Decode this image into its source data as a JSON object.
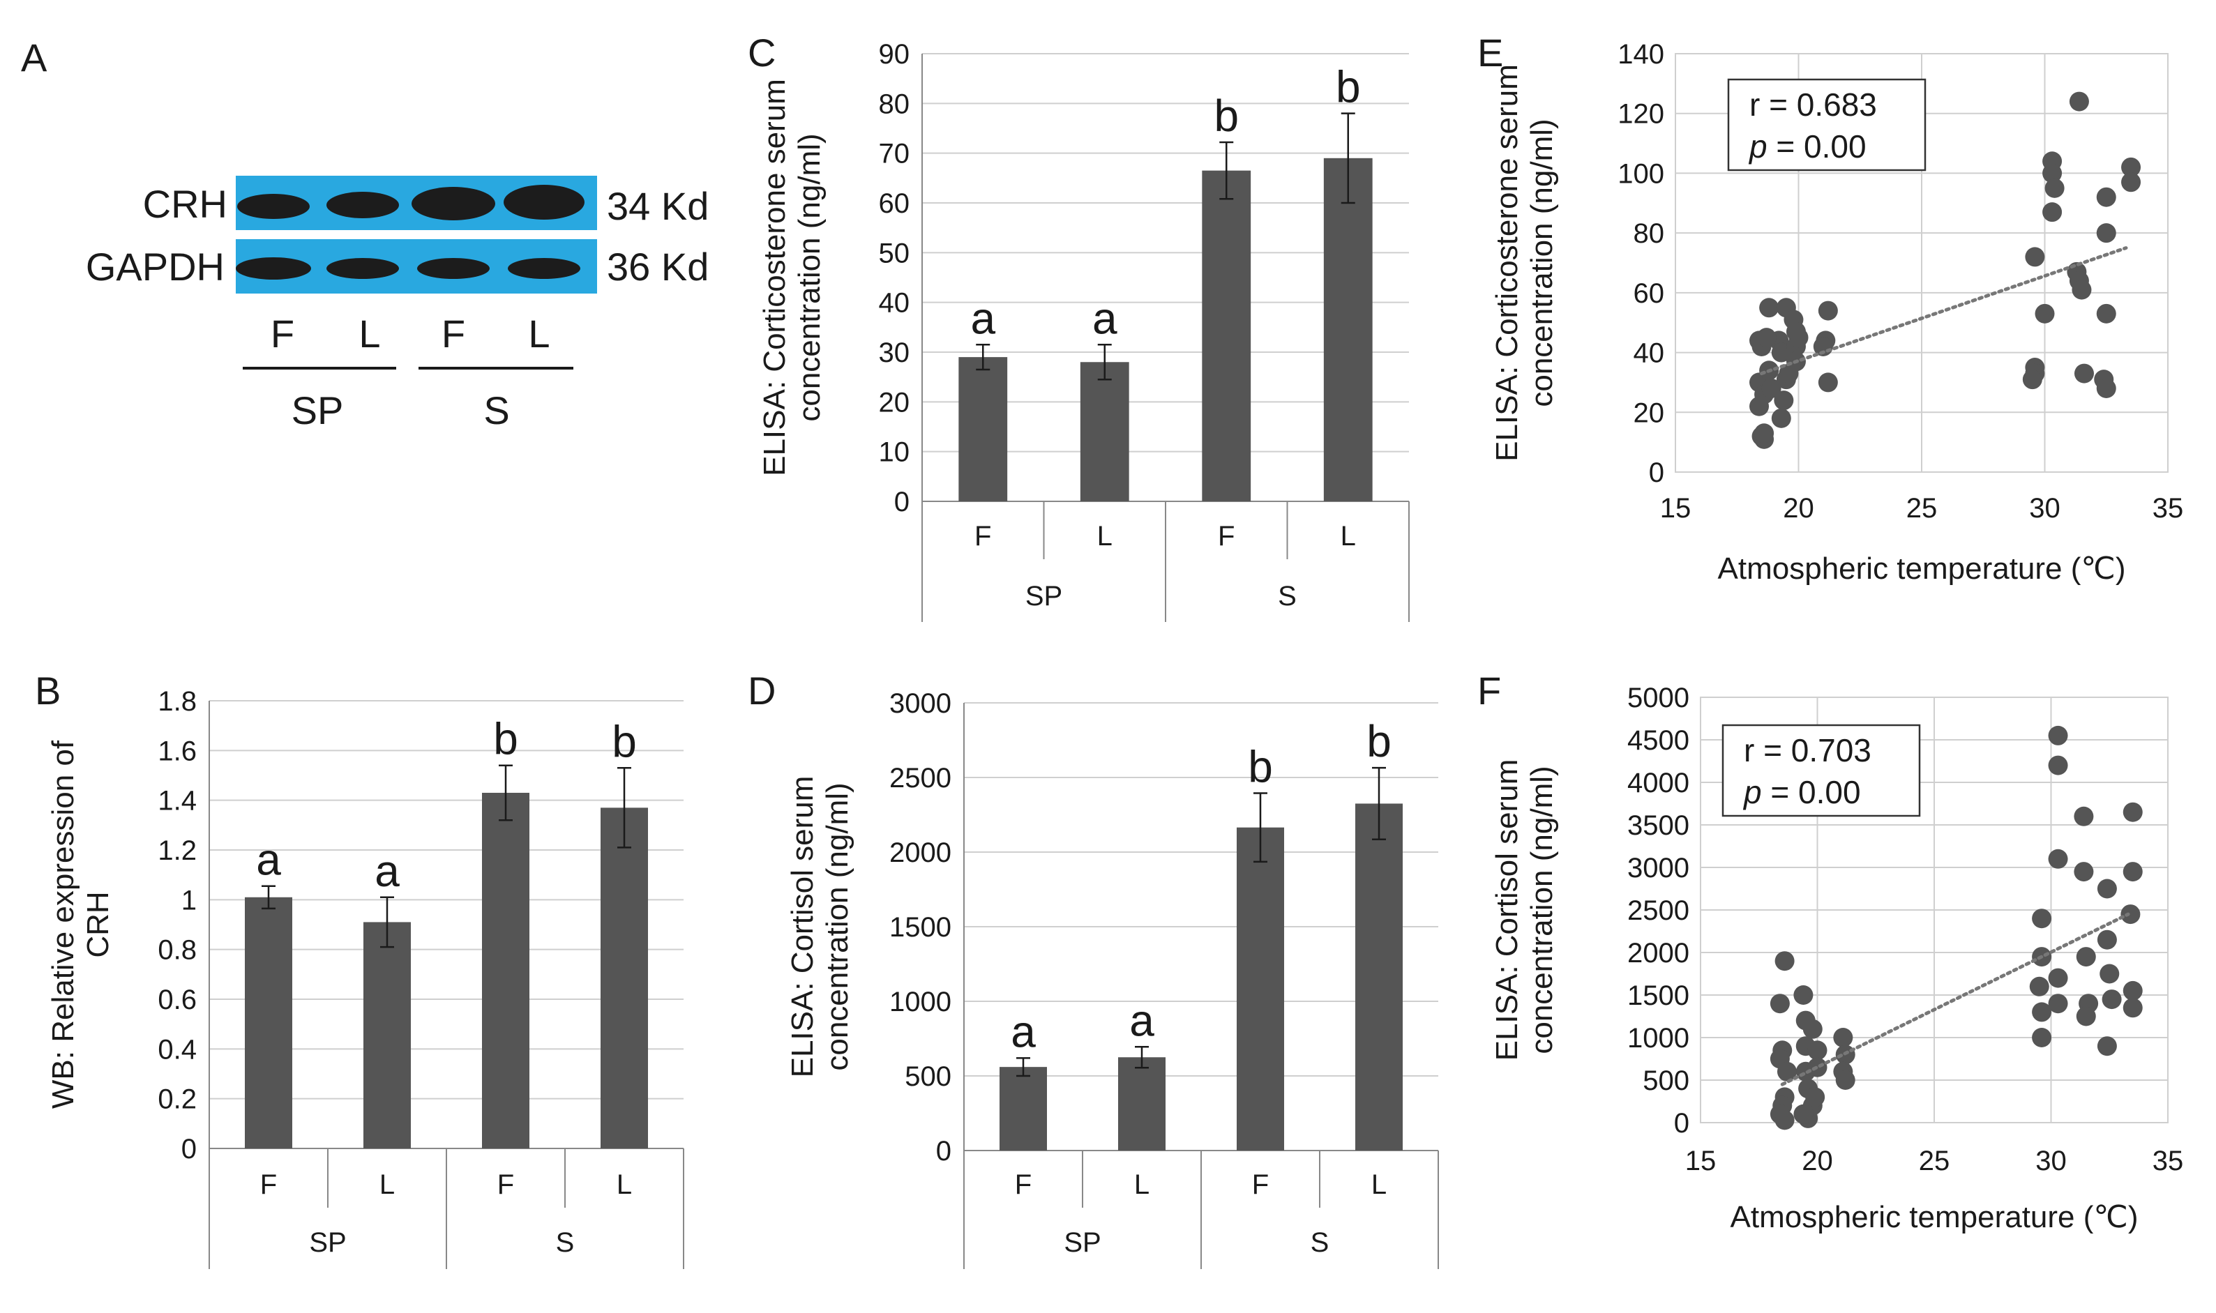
{
  "colors": {
    "bar": "#555555",
    "scatter": "#555555",
    "grid": "#cfcfcf",
    "axis": "#888888",
    "blot_bg": "#29a8e0",
    "band": "#1c1c1c"
  },
  "panel_A": {
    "label": "A",
    "rows": [
      {
        "name": "CRH",
        "size": "34 Kd"
      },
      {
        "name": "GAPDH",
        "size": "36 Kd"
      }
    ],
    "lanes": [
      "F",
      "L",
      "F",
      "L"
    ],
    "groups": [
      "SP",
      "S"
    ]
  },
  "chart_data": [
    {
      "id": "B",
      "type": "bar",
      "panel_label": "B",
      "ylabel_lines": [
        "WB: Relative expression of",
        "CRH"
      ],
      "ylim": [
        0,
        1.8
      ],
      "yticks": [
        "0",
        "0.2",
        "0.4",
        "0.6",
        "0.8",
        "1",
        "1.2",
        "1.4",
        "1.6",
        "1.8"
      ],
      "categories": [
        "F",
        "L",
        "F",
        "L"
      ],
      "groups": [
        "SP",
        "S"
      ],
      "values": [
        1.01,
        0.91,
        1.43,
        1.37
      ],
      "errors": [
        0.045,
        0.1,
        0.11,
        0.16
      ],
      "sig": [
        "a",
        "a",
        "b",
        "b"
      ]
    },
    {
      "id": "C",
      "type": "bar",
      "panel_label": "C",
      "ylabel_lines": [
        "ELISA: Corticosterone serum",
        "concentration (ng/ml)"
      ],
      "ylim": [
        0,
        90
      ],
      "yticks": [
        "0",
        "10",
        "20",
        "30",
        "40",
        "50",
        "60",
        "70",
        "80",
        "90"
      ],
      "categories": [
        "F",
        "L",
        "F",
        "L"
      ],
      "groups": [
        "SP",
        "S"
      ],
      "values": [
        29,
        28,
        66.5,
        69
      ],
      "errors": [
        2.5,
        3.5,
        5.7,
        9
      ],
      "sig": [
        "a",
        "a",
        "b",
        "b"
      ]
    },
    {
      "id": "D",
      "type": "bar",
      "panel_label": "D",
      "ylabel_lines": [
        "ELISA: Cortisol serum",
        "concentration (ng/ml)"
      ],
      "ylim": [
        0,
        3000
      ],
      "yticks": [
        "0",
        "500",
        "1000",
        "1500",
        "2000",
        "2500",
        "3000"
      ],
      "categories": [
        "F",
        "L",
        "F",
        "L"
      ],
      "groups": [
        "SP",
        "S"
      ],
      "values": [
        560,
        625,
        2165,
        2325
      ],
      "errors": [
        60,
        70,
        230,
        240
      ],
      "sig": [
        "a",
        "a",
        "b",
        "b"
      ]
    },
    {
      "id": "E",
      "type": "scatter",
      "panel_label": "E",
      "ylabel_lines": [
        "ELISA: Corticosterone serum",
        "concentration (ng/ml)"
      ],
      "xlabel": "Atmospheric temperature (℃)",
      "xlim": [
        15,
        35
      ],
      "xticks": [
        "15",
        "20",
        "25",
        "30",
        "35"
      ],
      "ylim": [
        0,
        140
      ],
      "yticks": [
        "0",
        "20",
        "40",
        "60",
        "80",
        "100",
        "120",
        "140"
      ],
      "stat_r": "r = 0.683",
      "stat_p_label": "p",
      "stat_p_value": " = 0.00",
      "trend": {
        "x": [
          18.5,
          33.3
        ],
        "y": [
          33,
          75
        ]
      },
      "points": [
        [
          18.4,
          44
        ],
        [
          18.5,
          42
        ],
        [
          18.4,
          30
        ],
        [
          18.6,
          26
        ],
        [
          18.4,
          22
        ],
        [
          18.5,
          12
        ],
        [
          18.6,
          11
        ],
        [
          18.6,
          13
        ],
        [
          18.8,
          55
        ],
        [
          18.8,
          34
        ],
        [
          18.9,
          28
        ],
        [
          19.4,
          24
        ],
        [
          19.3,
          18
        ],
        [
          19.5,
          55
        ],
        [
          19.2,
          44
        ],
        [
          19.3,
          40
        ],
        [
          19.5,
          31
        ],
        [
          19.8,
          51
        ],
        [
          19.9,
          47
        ],
        [
          19.9,
          42
        ],
        [
          19.9,
          37
        ],
        [
          20.0,
          45
        ],
        [
          21.2,
          54
        ],
        [
          21.1,
          44
        ],
        [
          21.0,
          42
        ],
        [
          21.2,
          30
        ],
        [
          18.7,
          45
        ],
        [
          19.6,
          33
        ],
        [
          29.6,
          72
        ],
        [
          29.6,
          35
        ],
        [
          29.6,
          33
        ],
        [
          29.5,
          31
        ],
        [
          30.0,
          53
        ],
        [
          30.3,
          104
        ],
        [
          30.3,
          100
        ],
        [
          30.4,
          95
        ],
        [
          30.3,
          87
        ],
        [
          31.4,
          124
        ],
        [
          31.3,
          67
        ],
        [
          31.4,
          64
        ],
        [
          31.5,
          61
        ],
        [
          31.6,
          33
        ],
        [
          32.5,
          92
        ],
        [
          32.5,
          80
        ],
        [
          32.5,
          53
        ],
        [
          32.4,
          31
        ],
        [
          32.5,
          28
        ],
        [
          33.5,
          102
        ],
        [
          33.5,
          97
        ]
      ]
    },
    {
      "id": "F",
      "type": "scatter",
      "panel_label": "F",
      "ylabel_lines": [
        "ELISA: Cortisol serum",
        "concentration (ng/ml)"
      ],
      "xlabel": "Atmospheric temperature (℃)",
      "xlim": [
        15,
        35
      ],
      "xticks": [
        "15",
        "20",
        "25",
        "30",
        "35"
      ],
      "ylim": [
        0,
        5000
      ],
      "yticks": [
        "0",
        "500",
        "1000",
        "1500",
        "2000",
        "2500",
        "3000",
        "3500",
        "4000",
        "4500",
        "5000"
      ],
      "stat_r": "r = 0.703",
      "stat_p_label": "p",
      "stat_p_value": " = 0.00",
      "trend": {
        "x": [
          18.5,
          33.3
        ],
        "y": [
          450,
          2450
        ]
      },
      "points": [
        [
          18.6,
          1900
        ],
        [
          18.4,
          1400
        ],
        [
          18.5,
          850
        ],
        [
          18.4,
          750
        ],
        [
          18.6,
          300
        ],
        [
          18.5,
          200
        ],
        [
          18.4,
          100
        ],
        [
          18.6,
          30
        ],
        [
          19.4,
          1500
        ],
        [
          19.5,
          1200
        ],
        [
          19.8,
          1100
        ],
        [
          19.5,
          900
        ],
        [
          19.5,
          600
        ],
        [
          19.6,
          400
        ],
        [
          19.8,
          200
        ],
        [
          19.6,
          50
        ],
        [
          20.0,
          850
        ],
        [
          20.0,
          650
        ],
        [
          19.9,
          300
        ],
        [
          21.1,
          1000
        ],
        [
          21.2,
          800
        ],
        [
          21.1,
          600
        ],
        [
          21.2,
          500
        ],
        [
          19.4,
          100
        ],
        [
          18.7,
          600
        ],
        [
          29.6,
          2400
        ],
        [
          29.6,
          1950
        ],
        [
          29.5,
          1600
        ],
        [
          29.6,
          1300
        ],
        [
          29.6,
          1000
        ],
        [
          30.3,
          4550
        ],
        [
          30.3,
          4200
        ],
        [
          30.3,
          3100
        ],
        [
          30.3,
          1700
        ],
        [
          30.3,
          1400
        ],
        [
          31.4,
          3600
        ],
        [
          31.4,
          2950
        ],
        [
          31.5,
          1950
        ],
        [
          31.6,
          1400
        ],
        [
          31.5,
          1250
        ],
        [
          32.4,
          2750
        ],
        [
          32.4,
          2150
        ],
        [
          32.5,
          1750
        ],
        [
          32.6,
          1450
        ],
        [
          32.4,
          900
        ],
        [
          33.5,
          3650
        ],
        [
          33.5,
          2950
        ],
        [
          33.4,
          2450
        ],
        [
          33.5,
          1550
        ],
        [
          33.5,
          1350
        ]
      ]
    }
  ]
}
